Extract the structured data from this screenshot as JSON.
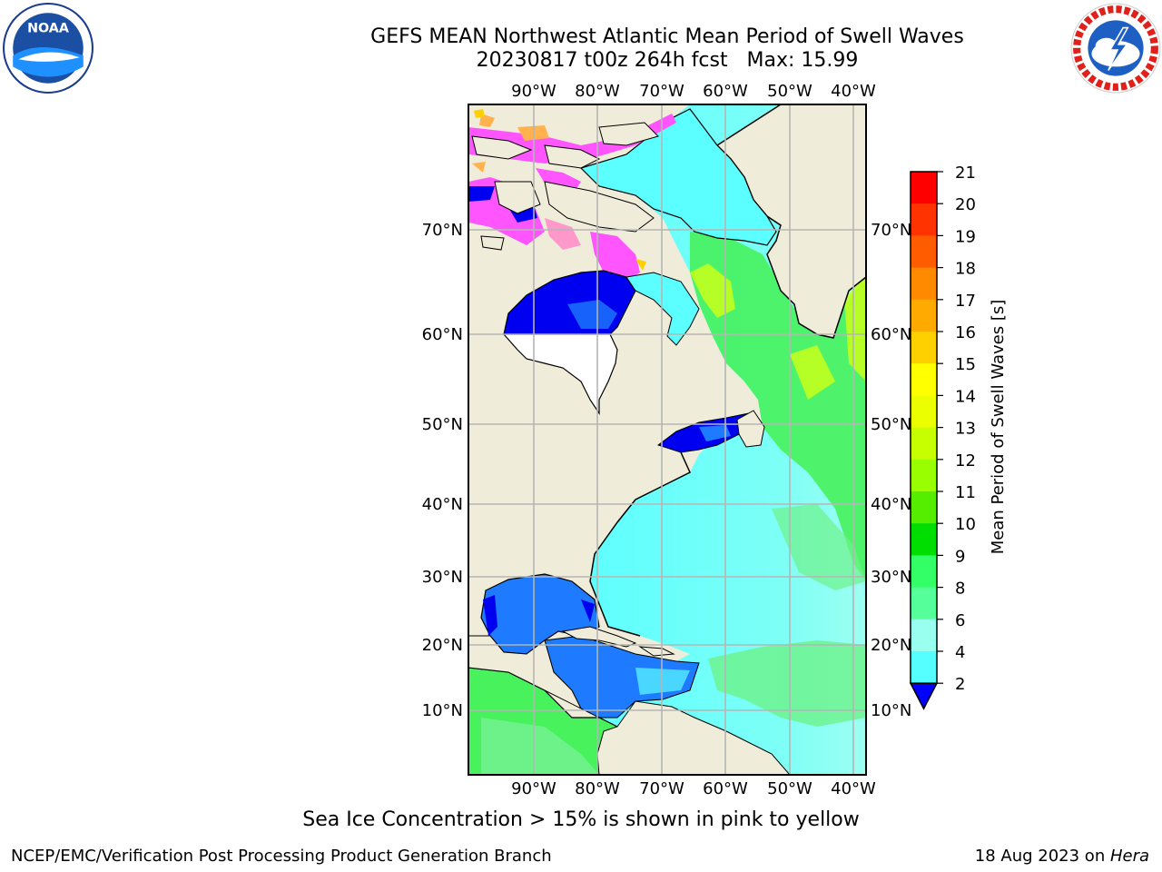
{
  "header": {
    "title_line1": "GEFS MEAN Northwest Atlantic Mean Period of Swell Waves",
    "title_line2": "20230817 t00z 264h fcst   Max: 15.99"
  },
  "logos": {
    "left": "noaa-logo",
    "right": "nws-logo"
  },
  "map": {
    "lon_labels": [
      "90°W",
      "80°W",
      "70°W",
      "60°W",
      "50°W",
      "40°W"
    ],
    "lat_labels": [
      "70°N",
      "60°N",
      "50°N",
      "40°N",
      "30°N",
      "20°N",
      "10°N"
    ],
    "colors": {
      "land": "#efedda",
      "ocean_main": "#5cffff",
      "ocean_light": "#9dfff2",
      "gulf": "#1e7bff",
      "ice_pink": "#ff55ff",
      "ice_orange": "#ffb24d",
      "green": "#47f25c",
      "yellow_green": "#c8ff1a",
      "deep_blue": "#0000f0"
    }
  },
  "colorbar": {
    "label": "Mean Period of Swell Waves [s]",
    "ticks": [
      "21",
      "20",
      "19",
      "18",
      "17",
      "16",
      "15",
      "14",
      "13",
      "12",
      "11",
      "10",
      "9",
      "8",
      "6",
      "4",
      "2"
    ],
    "colors": [
      "#ff0000",
      "#ff3300",
      "#ff5c00",
      "#ff8a00",
      "#ffaa00",
      "#ffd000",
      "#ffff00",
      "#ecff00",
      "#c8ff00",
      "#99ff00",
      "#55ee00",
      "#00dd00",
      "#33ff66",
      "#55ff99",
      "#99ffee",
      "#55ffff",
      "#00ffff",
      "#1e7bff"
    ],
    "extend_color": "#0000ff"
  },
  "caption": "Sea Ice Concentration > 15% is shown in pink to yellow",
  "footer": {
    "left": "NCEP/EMC/Verification Post Processing Product Generation Branch",
    "right_date": "18 Aug 2023 on ",
    "right_host": "Hera"
  }
}
